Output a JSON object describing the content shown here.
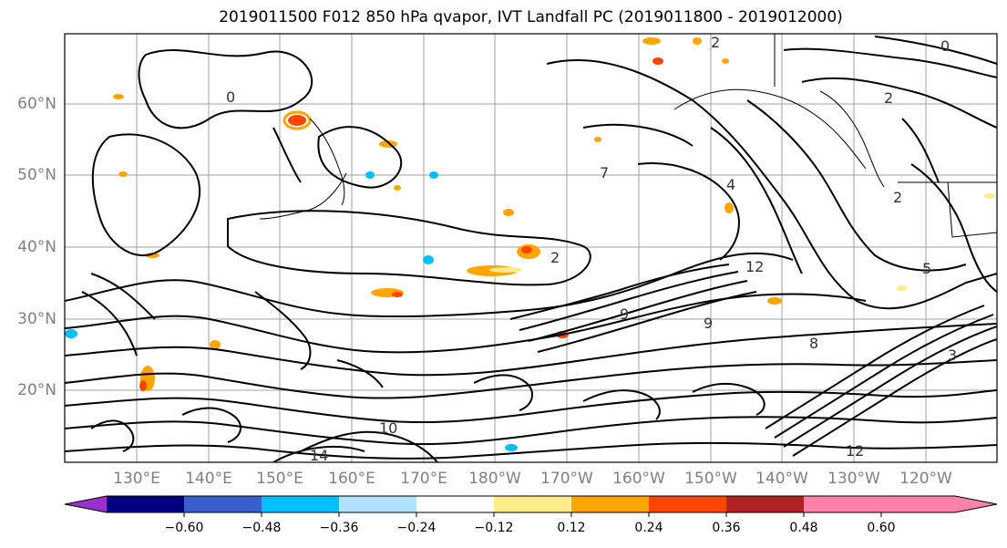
{
  "title": "2019011500 F012 850 hPa qvapor, IVT Landfall PC (2019011800 - 2019012000)",
  "latitude_labels": [
    "60°N",
    "50°N",
    "40°N",
    "30°N",
    "20°N"
  ],
  "longitude_labels": [
    "130°E",
    "140°E",
    "150°E",
    "160°E",
    "170°E",
    "180°W",
    "170°W",
    "160°W",
    "150°W",
    "140°W",
    "130°W",
    "120°W"
  ],
  "colorbar": {
    "tick_labels": [
      "−0.60",
      "−0.48",
      "−0.36",
      "−0.24",
      "−0.12",
      "0.12",
      "0.24",
      "0.36",
      "0.48",
      "0.60"
    ],
    "colors": [
      "#9932cc",
      "#000080",
      "#3a5fcd",
      "#00bfff",
      "#b0e2ff",
      "#ffffff",
      "#ffec8b",
      "#ffa500",
      "#ff4500",
      "#b22222",
      "#ff82ab"
    ]
  },
  "contour_labels": [
    "0",
    "0",
    "2",
    "2",
    "2",
    "2",
    "4",
    "5",
    "7",
    "9",
    "9",
    "10",
    "12",
    "12",
    "14",
    "3",
    "8"
  ],
  "colors": {
    "contour": "#000000",
    "grid": "#a0a0a0",
    "coast": "#000000"
  }
}
